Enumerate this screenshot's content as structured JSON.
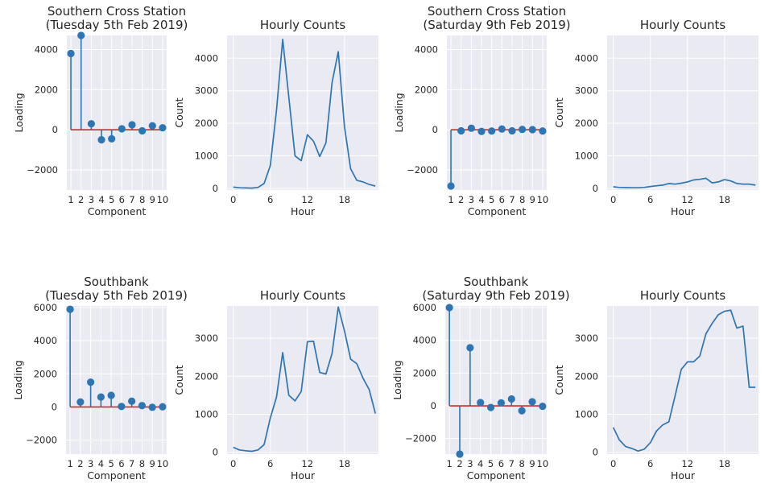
{
  "chart_data": [
    {
      "type": "stem",
      "title": [
        "Southern Cross Station",
        "(Tuesday 5th Feb 2019)"
      ],
      "xlabel": "Component",
      "ylabel": "Loading",
      "categories": [
        1,
        2,
        3,
        4,
        5,
        6,
        7,
        8,
        9,
        10
      ],
      "values": [
        3800,
        4700,
        300,
        -500,
        -450,
        50,
        250,
        -50,
        200,
        100
      ],
      "xlim": [
        0.6,
        10.4
      ],
      "ylim": [
        -3000,
        4700
      ],
      "yticks": [
        -2000,
        0,
        2000,
        4000
      ],
      "xticks": [
        1,
        2,
        3,
        4,
        5,
        6,
        7,
        8,
        9,
        10
      ],
      "marker_color": "#2d75b3",
      "baseline_color": "#cc2b2b"
    },
    {
      "type": "line",
      "title": [
        "Hourly Counts"
      ],
      "xlabel": "Hour",
      "ylabel": "Count",
      "x": [
        0,
        1,
        2,
        3,
        4,
        5,
        6,
        7,
        8,
        9,
        10,
        11,
        12,
        13,
        14,
        15,
        16,
        17,
        18,
        19,
        20,
        21,
        22,
        23
      ],
      "values": [
        40,
        20,
        15,
        10,
        30,
        150,
        700,
        2400,
        4580,
        2800,
        1000,
        850,
        1650,
        1450,
        980,
        1400,
        3250,
        4200,
        1900,
        600,
        250,
        200,
        120,
        70
      ],
      "xlim": [
        -1,
        23.5
      ],
      "ylim": [
        -50,
        4700
      ],
      "yticks": [
        0,
        1000,
        2000,
        3000,
        4000
      ],
      "xticks": [
        0,
        6,
        12,
        18
      ],
      "line_color": "#2d75b3"
    },
    {
      "type": "stem",
      "title": [
        "Southern Cross Station",
        "(Saturday 9th Feb 2019)"
      ],
      "xlabel": "Component",
      "ylabel": "Loading",
      "categories": [
        1,
        2,
        3,
        4,
        5,
        6,
        7,
        8,
        9,
        10
      ],
      "values": [
        -2800,
        -50,
        80,
        -80,
        -60,
        40,
        -50,
        20,
        10,
        -60
      ],
      "xlim": [
        0.6,
        10.4
      ],
      "ylim": [
        -3000,
        4700
      ],
      "yticks": [
        -2000,
        0,
        2000,
        4000
      ],
      "xticks": [
        1,
        2,
        3,
        4,
        5,
        6,
        7,
        8,
        9,
        10
      ],
      "marker_color": "#2d75b3",
      "baseline_color": "#cc2b2b"
    },
    {
      "type": "line",
      "title": [
        "Hourly Counts"
      ],
      "xlabel": "Hour",
      "ylabel": "Count",
      "x": [
        0,
        1,
        2,
        3,
        4,
        5,
        6,
        7,
        8,
        9,
        10,
        11,
        12,
        13,
        14,
        15,
        16,
        17,
        18,
        19,
        20,
        21,
        22,
        23
      ],
      "values": [
        50,
        30,
        25,
        20,
        20,
        30,
        60,
        80,
        100,
        150,
        130,
        160,
        200,
        260,
        280,
        310,
        170,
        200,
        270,
        230,
        150,
        130,
        130,
        100
      ],
      "xlim": [
        -1,
        23.5
      ],
      "ylim": [
        -50,
        4700
      ],
      "yticks": [
        0,
        1000,
        2000,
        3000,
        4000
      ],
      "xticks": [
        0,
        6,
        12,
        18
      ],
      "line_color": "#2d75b3"
    },
    {
      "type": "stem",
      "title": [
        "Southbank",
        "(Tuesday 5th Feb 2019)"
      ],
      "xlabel": "Component",
      "ylabel": "Loading",
      "categories": [
        1,
        2,
        3,
        4,
        5,
        6,
        7,
        8,
        9,
        10
      ],
      "values": [
        5900,
        300,
        1500,
        600,
        700,
        30,
        350,
        80,
        -20,
        10
      ],
      "xlim": [
        0.6,
        10.4
      ],
      "ylim": [
        -2850,
        6100
      ],
      "yticks": [
        -2000,
        0,
        2000,
        4000,
        6000
      ],
      "xticks": [
        1,
        2,
        3,
        4,
        5,
        6,
        7,
        8,
        9,
        10
      ],
      "marker_color": "#2d75b3",
      "baseline_color": "#cc2b2b"
    },
    {
      "type": "line",
      "title": [
        "Hourly Counts"
      ],
      "xlabel": "Hour",
      "ylabel": "Count",
      "x": [
        0,
        1,
        2,
        3,
        4,
        5,
        6,
        7,
        8,
        9,
        10,
        11,
        12,
        13,
        14,
        15,
        16,
        17,
        18,
        19,
        20,
        21,
        22,
        23
      ],
      "values": [
        130,
        60,
        40,
        25,
        60,
        200,
        900,
        1450,
        2620,
        1500,
        1350,
        1600,
        2910,
        2920,
        2100,
        2060,
        2600,
        3820,
        3200,
        2450,
        2330,
        1950,
        1650,
        1020
      ],
      "xlim": [
        -1,
        23.5
      ],
      "ylim": [
        -50,
        3850
      ],
      "yticks": [
        0,
        1000,
        2000,
        3000
      ],
      "xticks": [
        0,
        6,
        12,
        18
      ],
      "line_color": "#2d75b3"
    },
    {
      "type": "stem",
      "title": [
        "Southbank",
        "(Saturday 9th Feb 2019)"
      ],
      "xlabel": "Component",
      "ylabel": "Loading",
      "categories": [
        1,
        2,
        3,
        4,
        5,
        6,
        7,
        8,
        9,
        10
      ],
      "values": [
        6000,
        -2950,
        3550,
        200,
        -100,
        180,
        420,
        -300,
        250,
        -30
      ],
      "xlim": [
        0.6,
        10.4
      ],
      "ylim": [
        -2950,
        6100
      ],
      "yticks": [
        -2000,
        0,
        2000,
        4000,
        6000
      ],
      "xticks": [
        1,
        2,
        3,
        4,
        5,
        6,
        7,
        8,
        9,
        10
      ],
      "marker_color": "#2d75b3",
      "baseline_color": "#cc2b2b"
    },
    {
      "type": "line",
      "title": [
        "Hourly Counts"
      ],
      "xlabel": "Hour",
      "ylabel": "Count",
      "x": [
        0,
        1,
        2,
        3,
        4,
        5,
        6,
        7,
        8,
        9,
        10,
        11,
        12,
        13,
        14,
        15,
        16,
        17,
        18,
        19,
        20,
        21,
        22,
        23
      ],
      "values": [
        650,
        320,
        150,
        100,
        30,
        80,
        250,
        560,
        720,
        800,
        1480,
        2180,
        2380,
        2380,
        2530,
        3120,
        3390,
        3620,
        3710,
        3740,
        3270,
        3320,
        1710,
        1710
      ],
      "xlim": [
        -1,
        23.5
      ],
      "ylim": [
        -50,
        3850
      ],
      "yticks": [
        0,
        1000,
        2000,
        3000
      ],
      "xticks": [
        0,
        6,
        12,
        18
      ],
      "line_color": "#2d75b3"
    }
  ]
}
